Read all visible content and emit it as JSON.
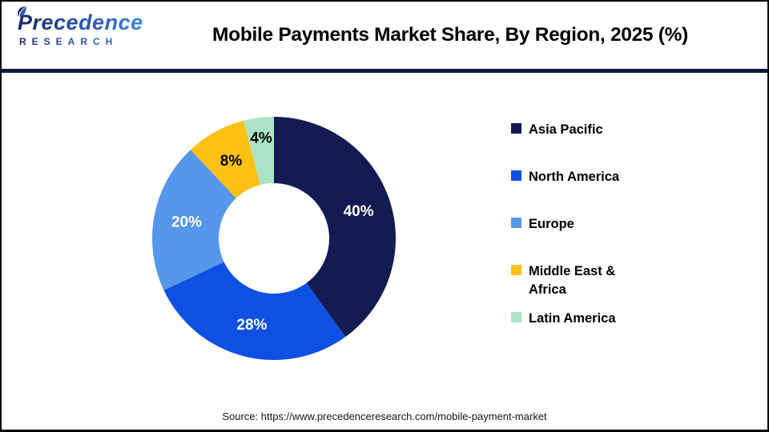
{
  "header": {
    "logo_line1": "Precedence",
    "logo_line2": "RESEARCH",
    "title": "Mobile Payments Market Share, By Region, 2025 (%)"
  },
  "chart_data": {
    "type": "pie",
    "subtype": "donut",
    "title": "Mobile Payments Market Share, By Region, 2025 (%)",
    "start_angle_deg": 0,
    "direction": "clockwise",
    "inner_radius_ratio": 0.45,
    "legend_position": "right",
    "data_label_format": "{value}%",
    "slices": [
      {
        "label": "Asia Pacific",
        "value": 40,
        "color": "#141a52",
        "label_color": "#ffffff"
      },
      {
        "label": "North America",
        "value": 28,
        "color": "#0e50e4",
        "label_color": "#ffffff"
      },
      {
        "label": "Europe",
        "value": 20,
        "color": "#5597ea",
        "label_color": "#ffffff"
      },
      {
        "label": "Middle East & Africa",
        "value": 8,
        "color": "#fdc013",
        "label_color": "#000000"
      },
      {
        "label": "Latin America",
        "value": 4,
        "color": "#a9e5c5",
        "label_color": "#000000"
      }
    ]
  },
  "footer": {
    "source": "Source: https://www.precedenceresearch.com/mobile-payment-market"
  },
  "colors": {
    "divider": "#10173f",
    "frame_border": "#000000",
    "logo_navy": "#1b2767",
    "logo_blue": "#3d86dd"
  }
}
